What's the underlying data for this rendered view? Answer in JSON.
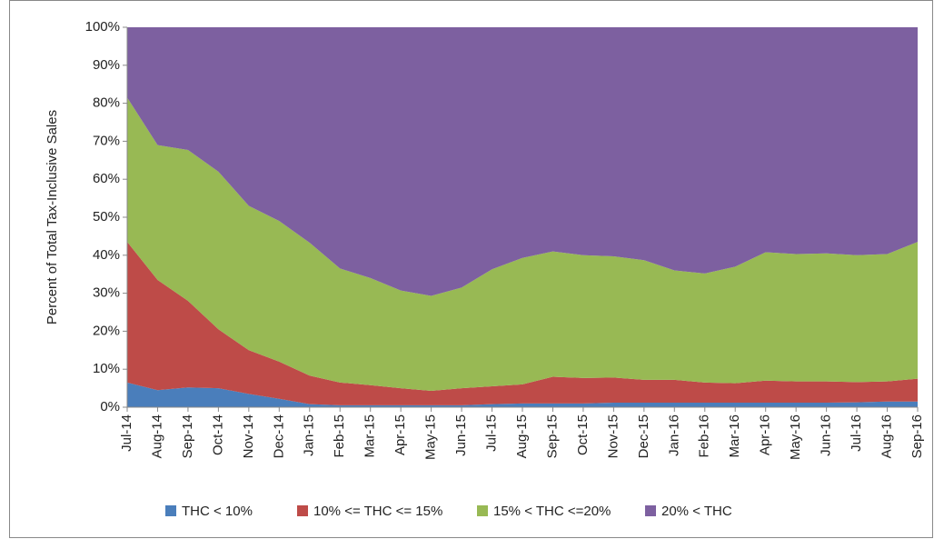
{
  "chart_data": {
    "type": "stacked-area",
    "y_label": "Percent of Total Tax-Inclusive Sales",
    "categories": [
      "Jul-14",
      "Aug-14",
      "Sep-14",
      "Oct-14",
      "Nov-14",
      "Dec-14",
      "Jan-15",
      "Feb-15",
      "Mar-15",
      "Apr-15",
      "May-15",
      "Jun-15",
      "Jul-15",
      "Aug-15",
      "Sep-15",
      "Oct-15",
      "Nov-15",
      "Dec-15",
      "Jan-16",
      "Feb-16",
      "Mar-16",
      "Apr-16",
      "May-16",
      "Jun-16",
      "Jul-16",
      "Aug-16",
      "Sep-16"
    ],
    "series": [
      {
        "name": "THC < 10%",
        "color": "#4a7ebb",
        "values": [
          6.5,
          4.5,
          5.2,
          5,
          3.5,
          2.2,
          0.8,
          0.5,
          0.5,
          0.5,
          0.5,
          0.5,
          0.8,
          1,
          1,
          1,
          1.2,
          1.2,
          1.2,
          1.2,
          1.2,
          1.2,
          1.2,
          1.2,
          1.3,
          1.5,
          1.5
        ]
      },
      {
        "name": "10% <= THC <= 15%",
        "color": "#be4b48",
        "values": [
          37,
          29,
          22.8,
          15.5,
          11.5,
          9.8,
          7.5,
          6,
          5.3,
          4.5,
          3.8,
          4.5,
          4.7,
          5,
          7,
          6.7,
          6.6,
          6,
          6,
          5.3,
          5.1,
          5.8,
          5.6,
          5.6,
          5.3,
          5.3,
          6
        ]
      },
      {
        "name": "15% < THC <=20%",
        "color": "#98b954",
        "values": [
          38,
          35.5,
          39.7,
          41.5,
          38,
          37,
          35,
          30,
          28.2,
          25.7,
          25,
          26.5,
          30.8,
          33.3,
          33,
          32.3,
          31.9,
          31.5,
          28.8,
          28.7,
          30.7,
          33.8,
          33.5,
          33.7,
          33.4,
          33.5,
          36
        ]
      },
      {
        "name": "20% < THC",
        "color": "#7d60a0",
        "values": [
          18.5,
          31,
          32.3,
          38,
          47,
          51,
          56.7,
          63.5,
          66,
          69.3,
          70.7,
          68.5,
          63.7,
          60.7,
          59,
          60,
          60.3,
          61.3,
          64,
          64.8,
          63,
          59.2,
          59.7,
          59.5,
          60,
          59.7,
          56.5
        ]
      }
    ],
    "ylim": [
      0,
      100
    ],
    "yticks": [
      {
        "value": 0,
        "label": "0%"
      },
      {
        "value": 10,
        "label": "10%"
      },
      {
        "value": 20,
        "label": "20%"
      },
      {
        "value": 30,
        "label": "30%"
      },
      {
        "value": 40,
        "label": "40%"
      },
      {
        "value": 50,
        "label": "50%"
      },
      {
        "value": 60,
        "label": "60%"
      },
      {
        "value": 70,
        "label": "70%"
      },
      {
        "value": 80,
        "label": "80%"
      },
      {
        "value": 90,
        "label": "90%"
      },
      {
        "value": 100,
        "label": "100%"
      }
    ],
    "legend": "bottom"
  }
}
